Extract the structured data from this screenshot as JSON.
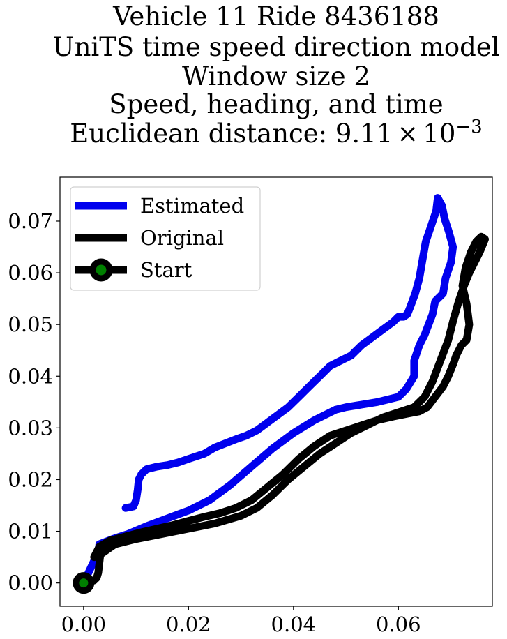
{
  "chart_data": {
    "type": "line",
    "title_lines": [
      "Vehicle 11 Ride 8436188",
      "UniTS time speed direction model",
      "Window size 2",
      "Speed, heading, and time",
      "Euclidean distance: "
    ],
    "title_distance": {
      "mantissa": "9.11",
      "times": "×",
      "base": "10",
      "exponent": "−3"
    },
    "xlabel": "",
    "ylabel": "",
    "xlim": [
      -0.0045,
      0.0779
    ],
    "ylim": [
      -0.0045,
      0.0785
    ],
    "xticks": [
      "0.00",
      "0.02",
      "0.04",
      "0.06"
    ],
    "xtick_values": [
      0.0,
      0.02,
      0.04,
      0.06
    ],
    "yticks": [
      "0.00",
      "0.01",
      "0.02",
      "0.03",
      "0.04",
      "0.05",
      "0.06",
      "0.07"
    ],
    "ytick_values": [
      0.0,
      0.01,
      0.02,
      0.03,
      0.04,
      0.05,
      0.06,
      0.07
    ],
    "grid": false,
    "legend_position": "upper left",
    "series": [
      {
        "name": "Estimated",
        "color": "#0000ee",
        "x": [
          0.0,
          0.0028,
          0.003,
          0.0055,
          0.0085,
          0.012,
          0.016,
          0.02,
          0.024,
          0.028,
          0.032,
          0.036,
          0.04,
          0.044,
          0.048,
          0.05,
          0.053,
          0.056,
          0.058,
          0.06,
          0.0615,
          0.063,
          0.063,
          0.064,
          0.065,
          0.0665,
          0.067,
          0.0685,
          0.069,
          0.07,
          0.0704,
          0.0696,
          0.0688,
          0.0683,
          0.0675,
          0.0672,
          0.0662,
          0.0652,
          0.0645,
          0.064,
          0.0632,
          0.0623,
          0.0617,
          0.061,
          0.06,
          0.059,
          0.057,
          0.055,
          0.053,
          0.051,
          0.049,
          0.047,
          0.045,
          0.043,
          0.041,
          0.039,
          0.037,
          0.035,
          0.033,
          0.031,
          0.029,
          0.027,
          0.025,
          0.023,
          0.02,
          0.018,
          0.016,
          0.014,
          0.012,
          0.011,
          0.0105,
          0.0103,
          0.01,
          0.0095,
          0.008
        ],
        "y": [
          0.0,
          0.006,
          0.0075,
          0.0085,
          0.0095,
          0.011,
          0.0125,
          0.014,
          0.016,
          0.019,
          0.0225,
          0.026,
          0.029,
          0.0315,
          0.0335,
          0.034,
          0.0345,
          0.035,
          0.0355,
          0.036,
          0.0375,
          0.04,
          0.043,
          0.046,
          0.048,
          0.052,
          0.0545,
          0.056,
          0.059,
          0.062,
          0.065,
          0.068,
          0.0705,
          0.073,
          0.0745,
          0.072,
          0.069,
          0.066,
          0.062,
          0.059,
          0.056,
          0.0535,
          0.052,
          0.0515,
          0.0515,
          0.0505,
          0.049,
          0.0475,
          0.046,
          0.044,
          0.043,
          0.042,
          0.04,
          0.038,
          0.036,
          0.034,
          0.0325,
          0.031,
          0.0295,
          0.0285,
          0.0278,
          0.027,
          0.0262,
          0.025,
          0.024,
          0.0233,
          0.0228,
          0.0225,
          0.022,
          0.021,
          0.02,
          0.018,
          0.016,
          0.0148,
          0.0145
        ]
      },
      {
        "name": "Original",
        "color": "#000000",
        "x": [
          0.0,
          0.002,
          0.0025,
          0.0028,
          0.0032,
          0.006,
          0.01,
          0.015,
          0.02,
          0.025,
          0.03,
          0.033,
          0.036,
          0.039,
          0.042,
          0.045,
          0.048,
          0.051,
          0.054,
          0.057,
          0.06,
          0.063,
          0.065,
          0.0665,
          0.068,
          0.0695,
          0.0705,
          0.0715,
          0.0725,
          0.0735,
          0.0745,
          0.0755,
          0.0765,
          0.0758,
          0.0748,
          0.0738,
          0.0728,
          0.0722,
          0.073,
          0.0735,
          0.073,
          0.072,
          0.071,
          0.0705,
          0.0695,
          0.0685,
          0.067,
          0.0655,
          0.064,
          0.062,
          0.059,
          0.056,
          0.053,
          0.05,
          0.047,
          0.044,
          0.041,
          0.038,
          0.035,
          0.032,
          0.029,
          0.026,
          0.023,
          0.02,
          0.017,
          0.014,
          0.011,
          0.008,
          0.005,
          0.003,
          0.002
        ],
        "y": [
          0.0,
          0.0005,
          0.001,
          0.002,
          0.0055,
          0.0075,
          0.0085,
          0.0095,
          0.0105,
          0.0115,
          0.013,
          0.0145,
          0.017,
          0.02,
          0.0225,
          0.025,
          0.027,
          0.029,
          0.0305,
          0.032,
          0.033,
          0.034,
          0.036,
          0.039,
          0.043,
          0.047,
          0.051,
          0.0545,
          0.0575,
          0.06,
          0.062,
          0.064,
          0.0665,
          0.067,
          0.066,
          0.064,
          0.061,
          0.0575,
          0.054,
          0.05,
          0.047,
          0.046,
          0.044,
          0.0425,
          0.04,
          0.038,
          0.036,
          0.034,
          0.0332,
          0.0328,
          0.0322,
          0.0315,
          0.0305,
          0.0295,
          0.0285,
          0.0265,
          0.024,
          0.021,
          0.0185,
          0.016,
          0.0145,
          0.0135,
          0.0128,
          0.012,
          0.0112,
          0.0105,
          0.0098,
          0.009,
          0.0082,
          0.007,
          0.005
        ]
      }
    ],
    "start_marker": {
      "name": "Start",
      "x": 0.0,
      "y": 0.0,
      "edge_color": "#000000",
      "face_color": "#008000"
    }
  }
}
